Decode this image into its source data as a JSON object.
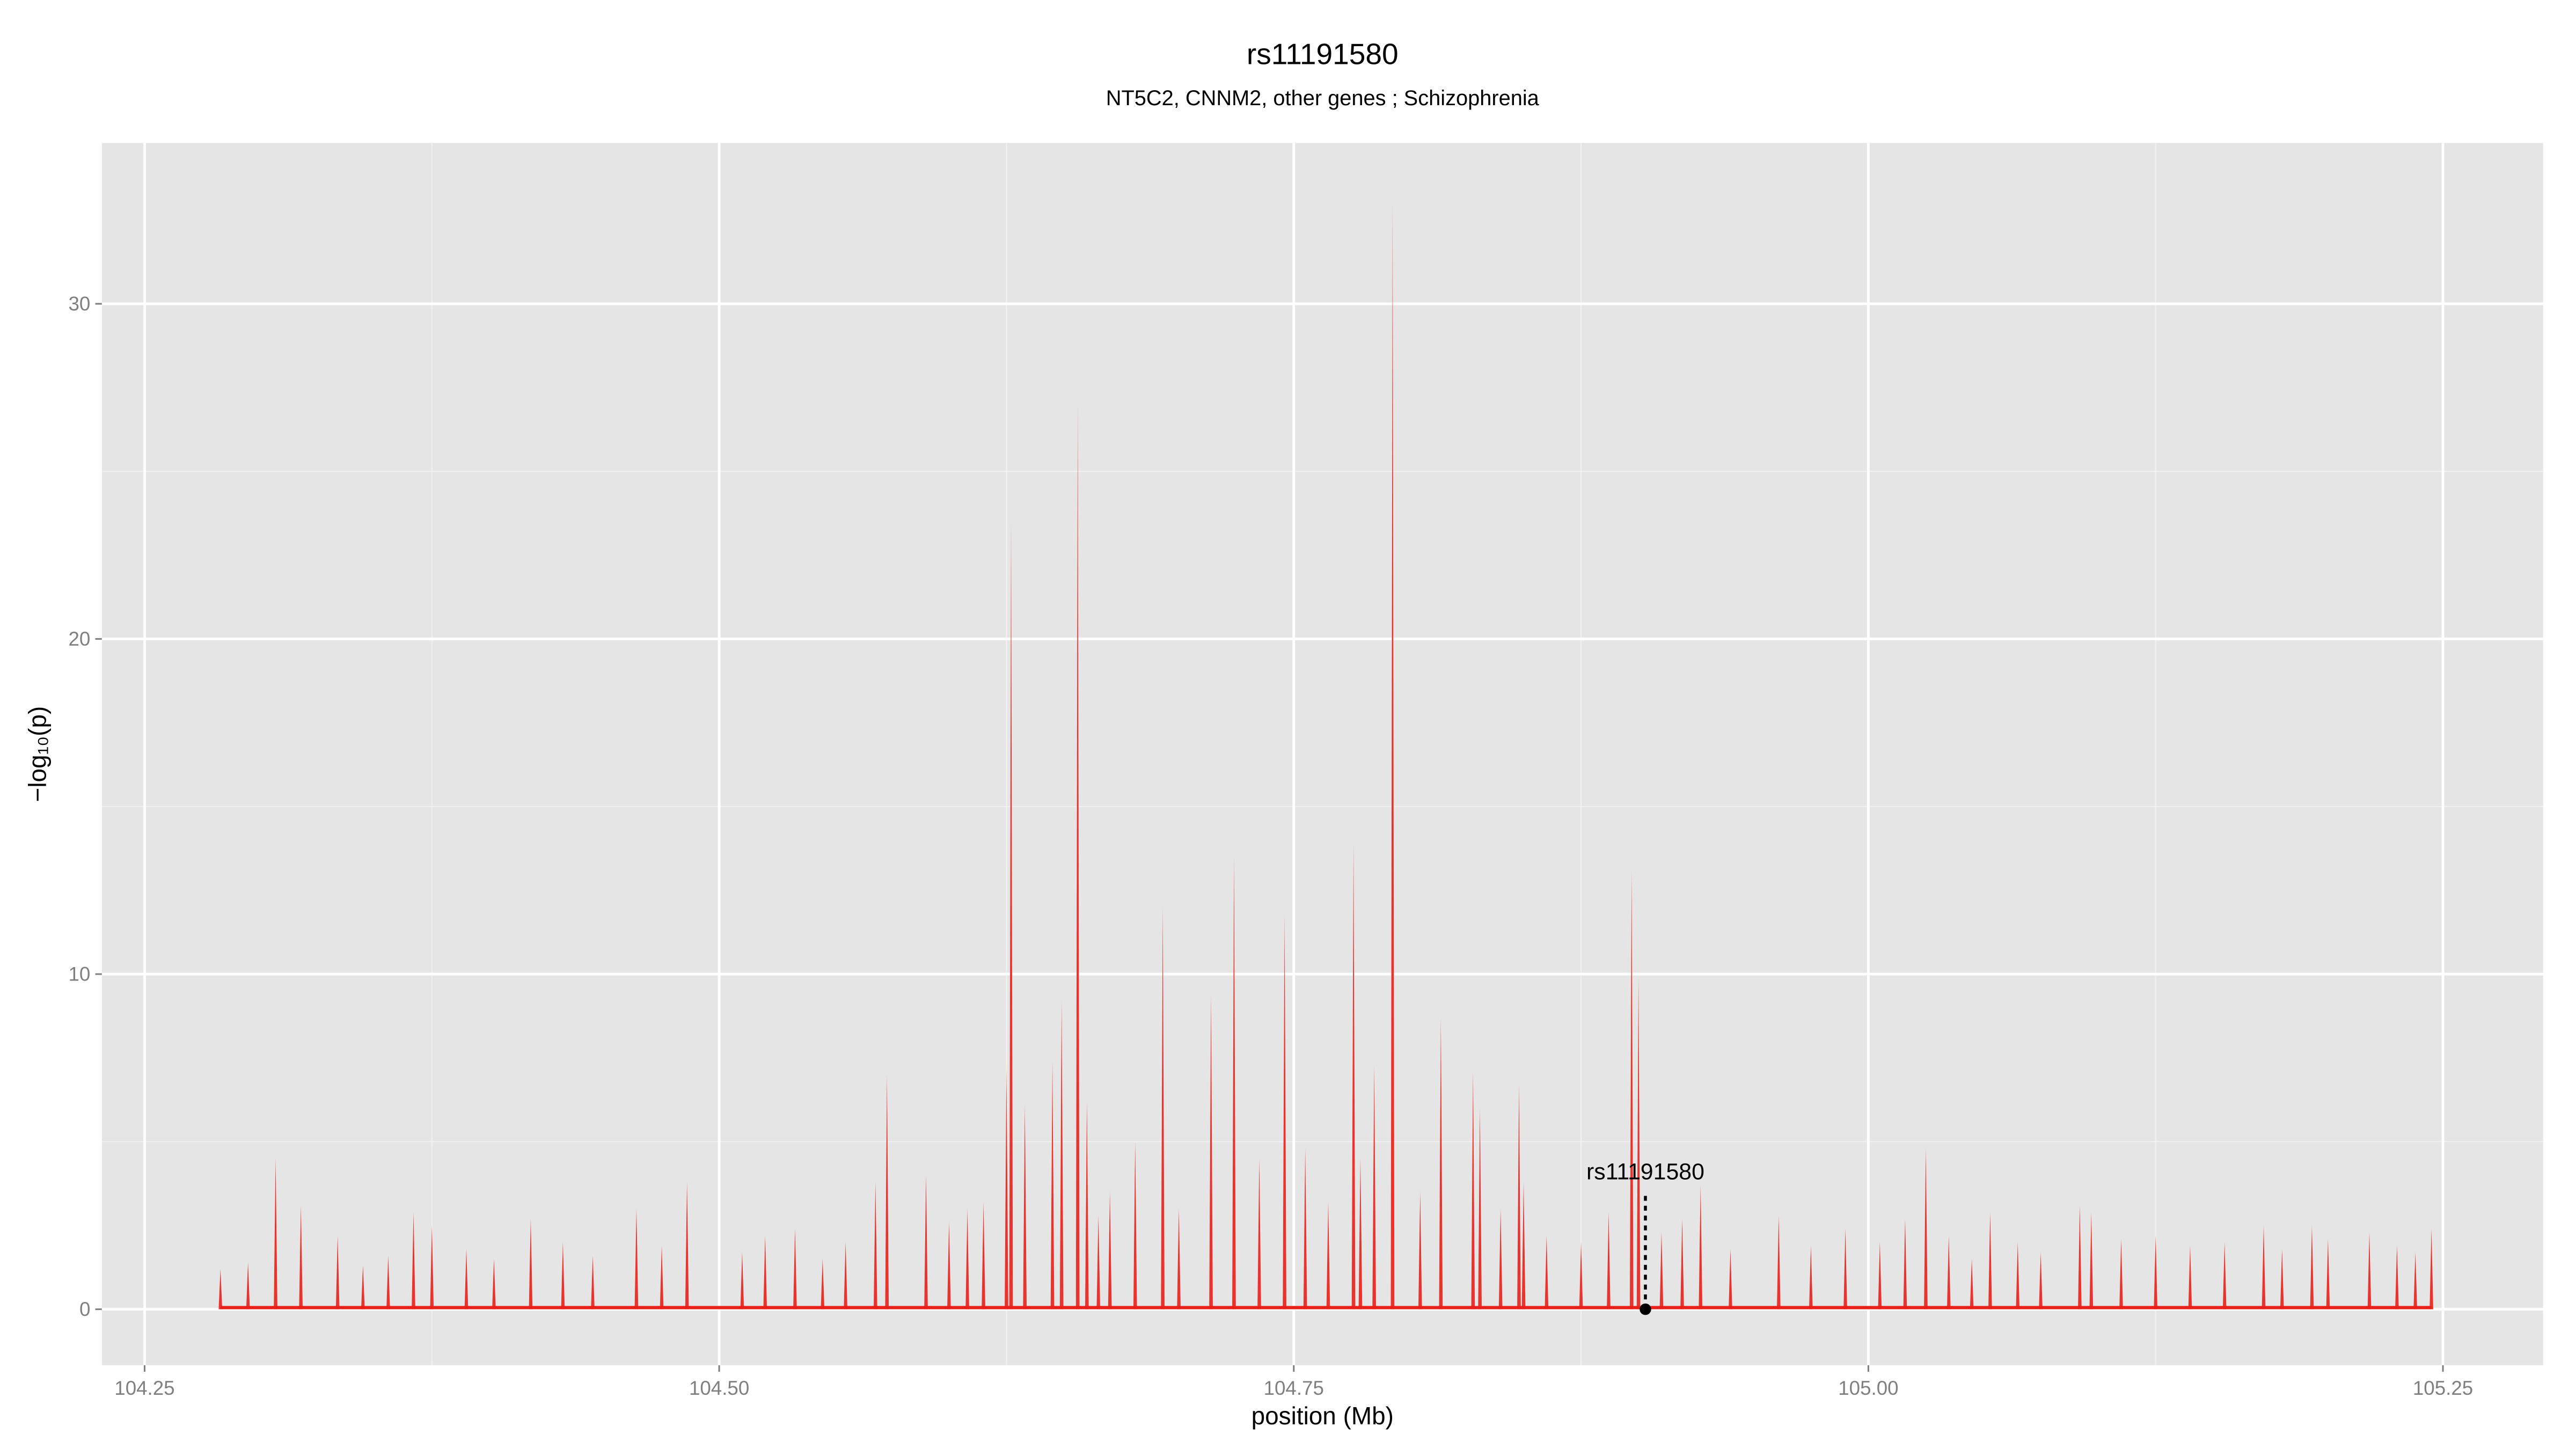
{
  "chart_data": {
    "type": "spike",
    "title": "rs11191580",
    "subtitle": "NT5C2, CNNM2, other genes ; Schizophrenia",
    "x_label": "position (Mb)",
    "y_label": "−log₁₀(p)",
    "xlim": [
      104.2314,
      105.2936
    ],
    "ylim": [
      -1.67,
      34.8
    ],
    "xticks": [
      {
        "value": 104.25,
        "label": "104.25"
      },
      {
        "value": 104.5,
        "label": "104.50"
      },
      {
        "value": 104.75,
        "label": "104.75"
      },
      {
        "value": 105.0,
        "label": "105.00"
      },
      {
        "value": 105.25,
        "label": "105.25"
      }
    ],
    "yticks": [
      0,
      10,
      20,
      30
    ],
    "minor_xticks": [
      104.375,
      104.625,
      104.875,
      105.125
    ],
    "minor_yticks": [
      5,
      15,
      25
    ],
    "grid": true,
    "x": [
      104.283,
      104.295,
      104.307,
      104.318,
      104.334,
      104.345,
      104.356,
      104.367,
      104.375,
      104.39,
      104.402,
      104.418,
      104.432,
      104.445,
      104.464,
      104.475,
      104.486,
      104.51,
      104.52,
      104.533,
      104.545,
      104.555,
      104.568,
      104.573,
      104.59,
      104.6,
      104.608,
      104.615,
      104.625,
      104.627,
      104.633,
      104.645,
      104.649,
      104.656,
      104.66,
      104.665,
      104.67,
      104.681,
      104.693,
      104.7,
      104.714,
      104.724,
      104.735,
      104.746,
      104.755,
      104.765,
      104.776,
      104.779,
      104.785,
      104.793,
      104.805,
      104.814,
      104.828,
      104.831,
      104.84,
      104.848,
      104.85,
      104.86,
      104.875,
      104.887,
      104.897,
      104.9,
      104.91,
      104.919,
      104.927,
      104.94,
      104.961,
      104.975,
      104.99,
      105.005,
      105.016,
      105.025,
      105.035,
      105.045,
      105.053,
      105.065,
      105.075,
      105.092,
      105.097,
      105.11,
      105.125,
      105.14,
      105.155,
      105.172,
      105.18,
      105.193,
      105.2,
      105.218,
      105.23,
      105.238,
      105.245
    ],
    "values": [
      1.2,
      1.4,
      4.5,
      3.1,
      2.2,
      1.3,
      1.6,
      2.9,
      2.5,
      1.8,
      1.5,
      2.7,
      2.0,
      1.6,
      3.0,
      1.9,
      3.8,
      1.7,
      2.2,
      2.4,
      1.5,
      2.0,
      3.8,
      7.0,
      4.0,
      2.6,
      3.0,
      3.2,
      7.2,
      23.5,
      6.1,
      7.4,
      9.2,
      27.0,
      6.2,
      2.8,
      3.5,
      5.0,
      12.0,
      3.0,
      9.4,
      13.5,
      4.5,
      11.8,
      4.8,
      3.2,
      13.9,
      4.5,
      7.3,
      33.1,
      3.5,
      8.7,
      7.1,
      6.0,
      3.0,
      6.7,
      3.8,
      2.2,
      2.0,
      2.9,
      13.1,
      9.9,
      2.3,
      2.7,
      3.7,
      1.8,
      2.8,
      1.9,
      2.4,
      2.0,
      2.7,
      4.8,
      2.2,
      1.5,
      2.9,
      2.0,
      1.7,
      3.1,
      2.9,
      2.1,
      2.2,
      1.9,
      2.0,
      2.5,
      1.8,
      2.5,
      2.1,
      2.3,
      1.9,
      1.7,
      2.4
    ],
    "color": "#e8201a",
    "annotation": {
      "text": "rs11191580",
      "x": 104.903,
      "y": 0
    }
  }
}
